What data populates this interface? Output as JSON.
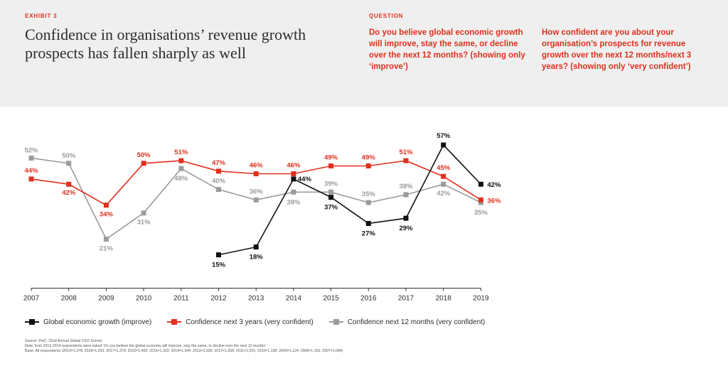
{
  "header": {
    "exhibit": "EXHIBIT 3",
    "title": "Confidence in organisations’ revenue growth prospects has fallen sharply as well",
    "question_label": "QUESTION",
    "question_1": "Do you believe global economic growth will improve, stay the same, or decline over the next 12 months? (showing only ‘improve’)",
    "question_2": "How confident are you about your organisation’s prospects for revenue growth over the next 12 months/next 3 years? (showing only ‘very confident’)"
  },
  "colors": {
    "black": "#111111",
    "red": "#e0301e",
    "gray": "#9b9b9b",
    "background": "#efefef"
  },
  "chart_data": {
    "type": "line",
    "x": [
      "2007",
      "2008",
      "2009",
      "2010",
      "2011",
      "2012",
      "2013",
      "2014",
      "2015",
      "2016",
      "2017",
      "2018",
      "2019"
    ],
    "ylim": [
      10,
      60
    ],
    "grid": false,
    "legend_position": "bottom",
    "series": [
      {
        "name": "Global economic growth (improve)",
        "color": "#111111",
        "values": [
          null,
          null,
          null,
          null,
          null,
          15,
          18,
          44,
          37,
          27,
          29,
          57,
          42
        ],
        "labels": [
          "",
          "",
          "",
          "",
          "",
          "15%",
          "18%",
          "44%",
          "37%",
          "27%",
          "29%",
          "57%",
          "42%"
        ]
      },
      {
        "name": "Confidence next 3 years (very confident)",
        "color": "#e0301e",
        "values": [
          44,
          42,
          34,
          50,
          51,
          47,
          46,
          46,
          49,
          49,
          51,
          45,
          36
        ],
        "labels": [
          "44%",
          "42%",
          "34%",
          "50%",
          "51%",
          "47%",
          "46%",
          "46%",
          "49%",
          "49%",
          "51%",
          "45%",
          "36%"
        ]
      },
      {
        "name": "Confidence next 12 months (very confident)",
        "color": "#9b9b9b",
        "values": [
          52,
          50,
          21,
          31,
          48,
          40,
          36,
          39,
          39,
          35,
          38,
          42,
          35
        ],
        "labels": [
          "52%",
          "50%",
          "21%",
          "31%",
          "48%",
          "40%",
          "36%",
          "39%",
          "39%",
          "35%",
          "38%",
          "42%",
          "35%"
        ]
      }
    ]
  },
  "footnotes": {
    "source": "Source: PwC, 22nd Annual Global CEO Survey",
    "note": "Note: from 2012-2014 respondents were asked ‘Do you believe the global economy will improve, stay the same, or decline over the next 12 months’",
    "base": "Base: All respondents (2019=1,378; 2018=1,293; 2017=1,379; 2016=1,409; 2015=1,322; 2014=1,344; 2013=1,330; 2012=1,258; 2011=1,201; 2010=1,198; 2009=1,124; 2008=1,150; 2007=1,084)"
  }
}
